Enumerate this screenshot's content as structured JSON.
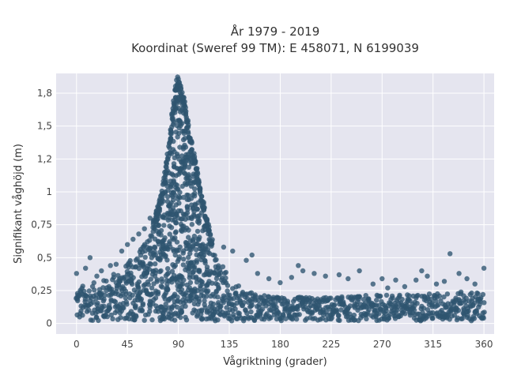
{
  "chart_data": {
    "type": "scatter",
    "title_line1": "År 1979 - 2019",
    "title_line2": "Koordinat (Sweref 99 TM): E 458071, N 6199039",
    "xlabel": "Vågriktning (grader)",
    "ylabel": "Signifikant våghöjd (m)",
    "xlim": [
      -18,
      369
    ],
    "ylim": [
      -0.08,
      1.9
    ],
    "x_ticks": [
      0,
      45,
      90,
      135,
      180,
      225,
      270,
      315,
      360
    ],
    "x_tick_labels": [
      "0",
      "45",
      "90",
      "135",
      "180",
      "225",
      "270",
      "315",
      "360"
    ],
    "y_ticks": [
      0,
      0.25,
      0.5,
      0.75,
      1,
      1.25,
      1.5,
      1.75
    ],
    "y_tick_labels": [
      "0",
      "0,25",
      "0,5",
      "0,75",
      "1",
      "1,2",
      "1,5",
      "1,8"
    ],
    "grid": true,
    "background": "#e5e5ef",
    "marker_color": "#2e5470",
    "envelope": {
      "description_x": [
        0,
        10,
        20,
        30,
        40,
        50,
        55,
        60,
        65,
        70,
        75,
        80,
        83,
        86,
        88,
        90,
        92,
        95,
        98,
        100,
        103,
        106,
        110,
        115,
        120,
        125,
        130,
        135,
        140,
        150,
        160,
        180,
        200,
        225,
        250,
        270,
        290,
        315,
        340,
        360
      ],
      "upper_y": [
        0.28,
        0.3,
        0.32,
        0.36,
        0.42,
        0.5,
        0.55,
        0.62,
        0.72,
        0.85,
        1.0,
        1.25,
        1.48,
        1.72,
        1.85,
        1.88,
        1.82,
        1.7,
        1.55,
        1.45,
        1.32,
        1.2,
        1.02,
        0.82,
        0.62,
        0.5,
        0.42,
        0.35,
        0.3,
        0.26,
        0.22,
        0.2,
        0.2,
        0.2,
        0.21,
        0.22,
        0.22,
        0.23,
        0.24,
        0.24
      ]
    },
    "outliers": [
      [
        0,
        0.38
      ],
      [
        8,
        0.42
      ],
      [
        12,
        0.5
      ],
      [
        18,
        0.36
      ],
      [
        22,
        0.4
      ],
      [
        30,
        0.44
      ],
      [
        35,
        0.45
      ],
      [
        40,
        0.55
      ],
      [
        45,
        0.6
      ],
      [
        50,
        0.64
      ],
      [
        55,
        0.68
      ],
      [
        60,
        0.72
      ],
      [
        65,
        0.8
      ],
      [
        130,
        0.58
      ],
      [
        138,
        0.55
      ],
      [
        150,
        0.48
      ],
      [
        155,
        0.52
      ],
      [
        160,
        0.38
      ],
      [
        170,
        0.34
      ],
      [
        180,
        0.31
      ],
      [
        190,
        0.35
      ],
      [
        196,
        0.44
      ],
      [
        200,
        0.4
      ],
      [
        210,
        0.38
      ],
      [
        220,
        0.36
      ],
      [
        232,
        0.37
      ],
      [
        240,
        0.34
      ],
      [
        250,
        0.4
      ],
      [
        262,
        0.3
      ],
      [
        270,
        0.34
      ],
      [
        275,
        0.27
      ],
      [
        282,
        0.33
      ],
      [
        290,
        0.28
      ],
      [
        300,
        0.33
      ],
      [
        305,
        0.4
      ],
      [
        310,
        0.36
      ],
      [
        318,
        0.3
      ],
      [
        325,
        0.32
      ],
      [
        330,
        0.53
      ],
      [
        338,
        0.38
      ],
      [
        345,
        0.34
      ],
      [
        352,
        0.3
      ],
      [
        360,
        0.42
      ]
    ]
  }
}
